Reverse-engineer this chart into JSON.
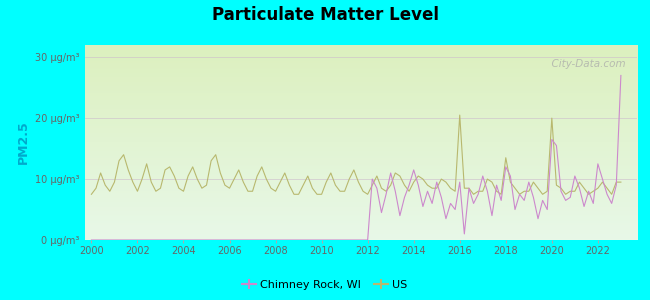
{
  "title": "Particulate Matter Level",
  "ylabel": "PM2.5",
  "background_outer": "#00FFFF",
  "ylim": [
    0,
    32
  ],
  "xlim": [
    1999.7,
    2023.7
  ],
  "yticks": [
    0,
    10,
    20,
    30
  ],
  "ytick_labels": [
    "0 μg/m³",
    "10 μg/m³",
    "20 μg/m³",
    "30 μg/m³"
  ],
  "xticks": [
    2000,
    2002,
    2004,
    2006,
    2008,
    2010,
    2012,
    2014,
    2016,
    2018,
    2020,
    2022
  ],
  "us_color": "#b8b86e",
  "chimney_color": "#cc88cc",
  "grid_color": "#ccccaa",
  "watermark": "  City-Data.com",
  "legend_chimney": "Chimney Rock, WI",
  "legend_us": "US",
  "bg_top": "#e8f5ee",
  "bg_bottom": "#eef5d8",
  "us_data_x": [
    2000.0,
    2000.2,
    2000.4,
    2000.6,
    2000.8,
    2001.0,
    2001.2,
    2001.4,
    2001.6,
    2001.8,
    2002.0,
    2002.2,
    2002.4,
    2002.6,
    2002.8,
    2003.0,
    2003.2,
    2003.4,
    2003.6,
    2003.8,
    2004.0,
    2004.2,
    2004.4,
    2004.6,
    2004.8,
    2005.0,
    2005.2,
    2005.4,
    2005.6,
    2005.8,
    2006.0,
    2006.2,
    2006.4,
    2006.6,
    2006.8,
    2007.0,
    2007.2,
    2007.4,
    2007.6,
    2007.8,
    2008.0,
    2008.2,
    2008.4,
    2008.6,
    2008.8,
    2009.0,
    2009.2,
    2009.4,
    2009.6,
    2009.8,
    2010.0,
    2010.2,
    2010.4,
    2010.6,
    2010.8,
    2011.0,
    2011.2,
    2011.4,
    2011.6,
    2011.8,
    2012.0,
    2012.2,
    2012.4,
    2012.6,
    2012.8,
    2013.0,
    2013.2,
    2013.4,
    2013.6,
    2013.8,
    2014.0,
    2014.2,
    2014.4,
    2014.6,
    2014.8,
    2015.0,
    2015.2,
    2015.4,
    2015.6,
    2015.8,
    2016.0,
    2016.2,
    2016.4,
    2016.6,
    2016.8,
    2017.0,
    2017.2,
    2017.4,
    2017.6,
    2017.8,
    2018.0,
    2018.2,
    2018.4,
    2018.6,
    2018.8,
    2019.0,
    2019.2,
    2019.4,
    2019.6,
    2019.8,
    2020.0,
    2020.2,
    2020.4,
    2020.6,
    2020.8,
    2021.0,
    2021.2,
    2021.4,
    2021.6,
    2021.8,
    2022.0,
    2022.2,
    2022.4,
    2022.6,
    2022.8,
    2023.0
  ],
  "us_data_y": [
    7.5,
    8.5,
    11.0,
    9.0,
    8.0,
    9.5,
    13.0,
    14.0,
    11.5,
    9.5,
    8.0,
    10.0,
    12.5,
    9.5,
    8.0,
    8.5,
    11.5,
    12.0,
    10.5,
    8.5,
    8.0,
    10.5,
    12.0,
    10.0,
    8.5,
    9.0,
    13.0,
    14.0,
    11.0,
    9.0,
    8.5,
    10.0,
    11.5,
    9.5,
    8.0,
    8.0,
    10.5,
    12.0,
    10.0,
    8.5,
    8.0,
    9.5,
    11.0,
    9.0,
    7.5,
    7.5,
    9.0,
    10.5,
    8.5,
    7.5,
    7.5,
    9.5,
    11.0,
    9.0,
    8.0,
    8.0,
    10.0,
    11.5,
    9.5,
    8.0,
    7.5,
    9.0,
    10.5,
    8.5,
    8.0,
    9.0,
    11.0,
    10.5,
    9.0,
    8.0,
    9.5,
    10.5,
    10.0,
    9.0,
    8.5,
    8.5,
    10.0,
    9.5,
    8.5,
    8.0,
    20.5,
    8.5,
    8.5,
    7.5,
    8.0,
    8.0,
    10.0,
    9.5,
    8.0,
    7.5,
    13.5,
    9.5,
    8.5,
    7.5,
    8.0,
    8.0,
    9.5,
    8.5,
    7.5,
    8.0,
    20.0,
    9.0,
    8.5,
    7.5,
    8.0,
    8.0,
    9.5,
    8.5,
    7.5,
    8.0,
    8.5,
    9.5,
    8.5,
    7.5,
    9.5,
    9.5
  ],
  "chimney_data_x": [
    2000.0,
    2000.2,
    2000.4,
    2000.6,
    2000.8,
    2001.0,
    2001.2,
    2001.4,
    2001.6,
    2001.8,
    2002.0,
    2002.2,
    2002.4,
    2002.6,
    2002.8,
    2003.0,
    2003.2,
    2003.4,
    2003.6,
    2003.8,
    2004.0,
    2004.2,
    2004.4,
    2004.6,
    2004.8,
    2005.0,
    2005.2,
    2005.4,
    2005.6,
    2005.8,
    2006.0,
    2006.2,
    2006.4,
    2006.6,
    2006.8,
    2007.0,
    2007.2,
    2007.4,
    2007.6,
    2007.8,
    2008.0,
    2008.2,
    2008.4,
    2008.6,
    2008.8,
    2009.0,
    2009.2,
    2009.4,
    2009.6,
    2009.8,
    2010.0,
    2010.2,
    2010.4,
    2010.6,
    2010.8,
    2011.0,
    2011.2,
    2011.4,
    2011.6,
    2011.8,
    2012.0,
    2012.2,
    2012.4,
    2012.6,
    2012.8,
    2013.0,
    2013.2,
    2013.4,
    2013.6,
    2013.8,
    2014.0,
    2014.2,
    2014.4,
    2014.6,
    2014.8,
    2015.0,
    2015.2,
    2015.4,
    2015.6,
    2015.8,
    2016.0,
    2016.2,
    2016.4,
    2016.6,
    2016.8,
    2017.0,
    2017.2,
    2017.4,
    2017.6,
    2017.8,
    2018.0,
    2018.2,
    2018.4,
    2018.6,
    2018.8,
    2019.0,
    2019.2,
    2019.4,
    2019.6,
    2019.8,
    2020.0,
    2020.2,
    2020.4,
    2020.6,
    2020.8,
    2021.0,
    2021.2,
    2021.4,
    2021.6,
    2021.8,
    2022.0,
    2022.2,
    2022.4,
    2022.6,
    2022.8,
    2023.0
  ],
  "chimney_data_y": [
    0.0,
    0.0,
    0.0,
    0.0,
    0.0,
    0.0,
    0.0,
    0.0,
    0.0,
    0.0,
    0.0,
    0.0,
    0.0,
    0.0,
    0.0,
    0.0,
    0.0,
    0.0,
    0.0,
    0.0,
    0.0,
    0.0,
    0.0,
    0.0,
    0.0,
    0.0,
    0.0,
    0.0,
    0.0,
    0.0,
    0.0,
    0.0,
    0.0,
    0.0,
    0.0,
    0.0,
    0.0,
    0.0,
    0.0,
    0.0,
    0.0,
    0.0,
    0.0,
    0.0,
    0.0,
    0.0,
    0.0,
    0.0,
    0.0,
    0.0,
    0.0,
    0.0,
    0.0,
    0.0,
    0.0,
    0.0,
    0.0,
    0.0,
    0.0,
    0.0,
    0.0,
    10.0,
    8.5,
    4.5,
    7.5,
    11.0,
    8.0,
    4.0,
    7.0,
    9.0,
    11.5,
    9.0,
    5.5,
    8.0,
    6.0,
    9.5,
    7.0,
    3.5,
    6.0,
    5.0,
    9.5,
    1.0,
    8.5,
    6.0,
    7.5,
    10.5,
    8.0,
    4.0,
    9.0,
    6.5,
    12.0,
    10.5,
    5.0,
    7.5,
    6.5,
    9.5,
    7.0,
    3.5,
    6.5,
    5.0,
    16.5,
    15.5,
    8.0,
    6.5,
    7.0,
    10.5,
    8.5,
    5.5,
    8.0,
    6.0,
    12.5,
    10.0,
    7.5,
    6.0,
    9.0,
    27.0
  ]
}
